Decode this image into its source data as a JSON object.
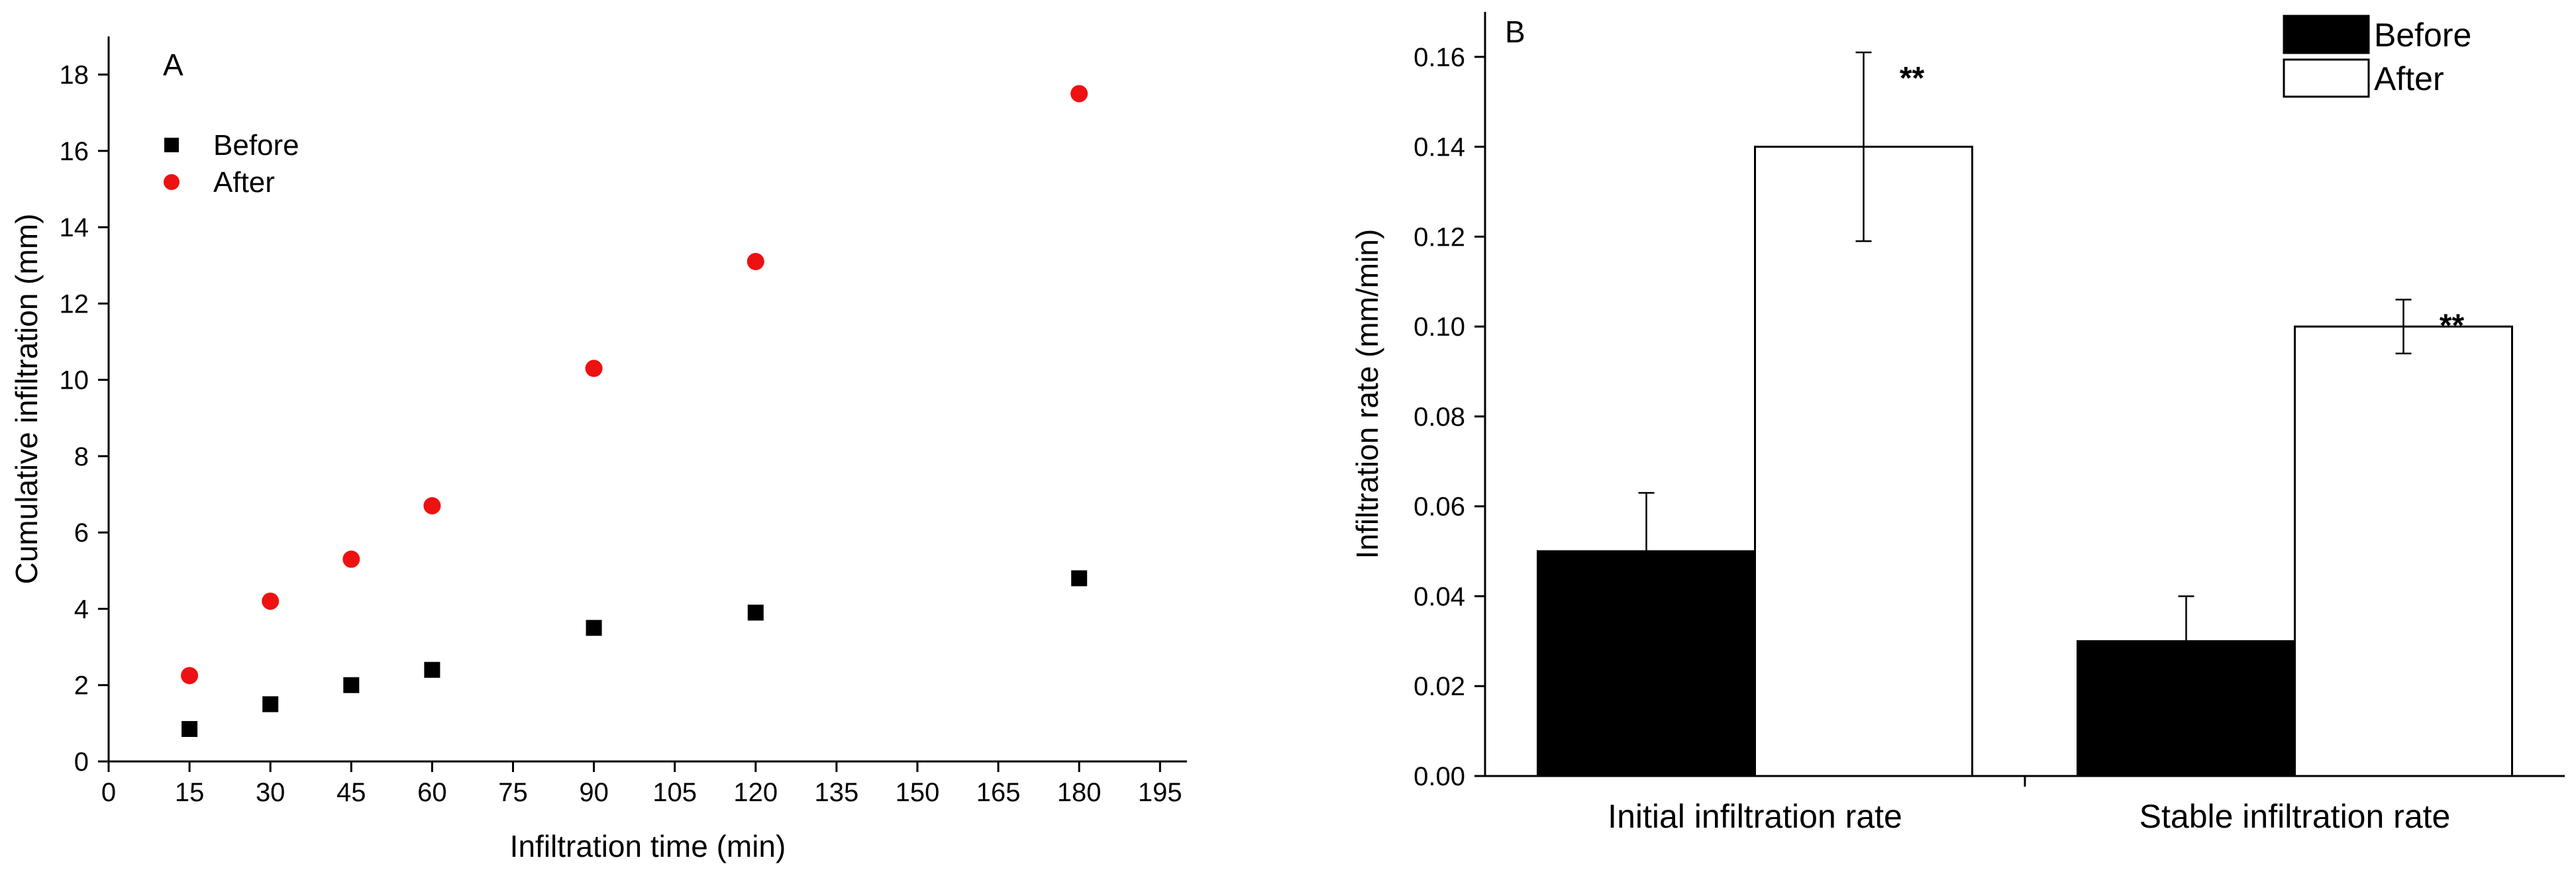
{
  "chart_data": [
    {
      "type": "scatter",
      "panel_label": "A",
      "xlabel": "Infiltration time (min)",
      "ylabel": "Cumulative infiltration (mm)",
      "xlim": [
        0,
        200
      ],
      "ylim": [
        0,
        19
      ],
      "x_ticks": [
        0,
        15,
        30,
        45,
        60,
        75,
        90,
        105,
        120,
        135,
        150,
        165,
        180,
        195
      ],
      "y_ticks": [
        0,
        2,
        4,
        6,
        8,
        10,
        12,
        14,
        16,
        18
      ],
      "grid": false,
      "legend_position": "top-left",
      "series": [
        {
          "name": "Before",
          "marker": "square",
          "color": "#000000",
          "x": [
            15,
            30,
            45,
            60,
            90,
            120,
            180
          ],
          "y": [
            0.85,
            1.5,
            2.0,
            2.4,
            3.5,
            3.9,
            4.8
          ]
        },
        {
          "name": "After",
          "marker": "circle",
          "color": "#ee1111",
          "x": [
            15,
            30,
            45,
            60,
            90,
            120,
            180
          ],
          "y": [
            2.25,
            4.2,
            5.3,
            6.7,
            10.3,
            13.1,
            17.5
          ]
        }
      ]
    },
    {
      "type": "bar",
      "panel_label": "B",
      "xlabel": "",
      "ylabel": "Infiltration rate (mm/min)",
      "ylim": [
        0,
        0.17
      ],
      "y_ticks": [
        "0.00",
        "0.02",
        "0.04",
        "0.06",
        "0.08",
        "0.10",
        "0.12",
        "0.14",
        "0.16"
      ],
      "grid": false,
      "legend_position": "top-right",
      "categories": [
        "Initial infiltration rate",
        "Stable infiltration rate"
      ],
      "series": [
        {
          "name": "Before",
          "color": "#000000",
          "values": [
            0.05,
            0.03
          ],
          "errors": [
            0.013,
            0.01
          ],
          "annotations": [
            "",
            ""
          ]
        },
        {
          "name": "After",
          "color": "#ffffff",
          "values": [
            0.14,
            0.1
          ],
          "errors": [
            0.021,
            0.006
          ],
          "annotations": [
            "**",
            "**"
          ]
        }
      ]
    }
  ]
}
